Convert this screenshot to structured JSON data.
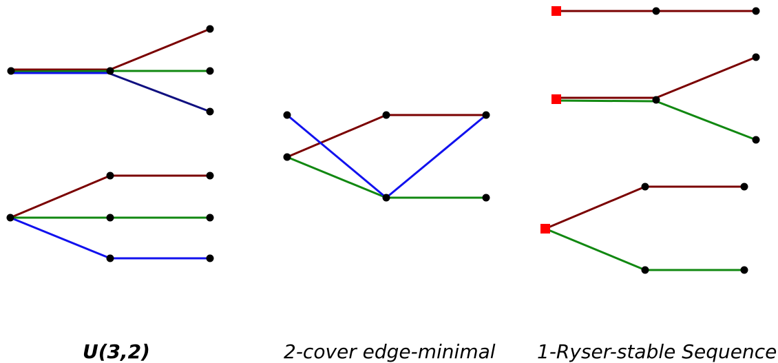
{
  "captions": {
    "u32": "U(3,2)",
    "two_cover": "2-cover edge-minimal",
    "ryser": "1-Ryser-stable Sequence"
  },
  "colors": {
    "dark_red": "#7a0000",
    "green": "#118811",
    "blue": "#1111ee",
    "navy": "#101080",
    "node": "#000000",
    "square_node": "#ff0000"
  }
}
